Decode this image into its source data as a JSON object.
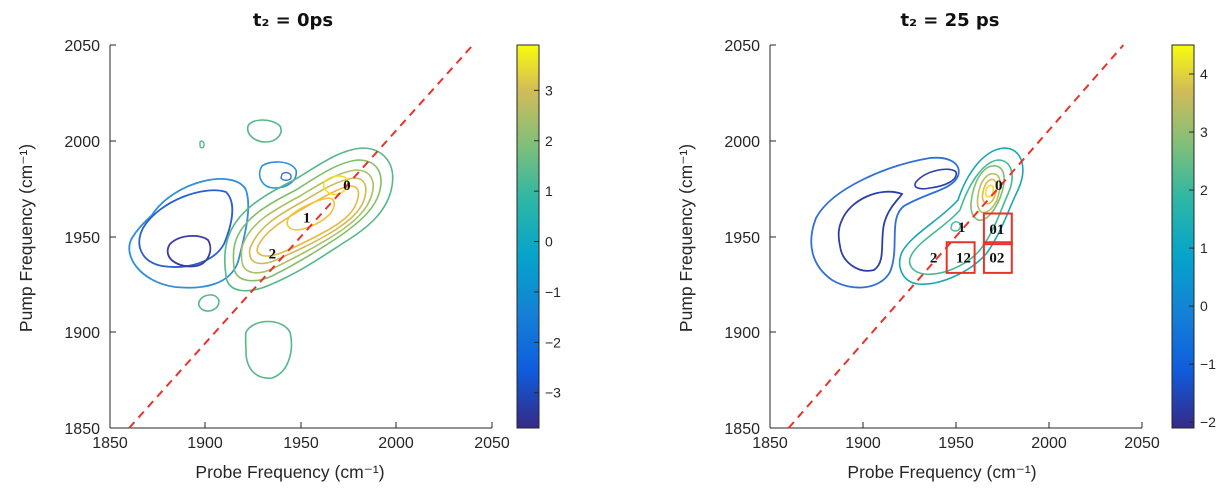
{
  "chart_data": [
    {
      "type": "contour",
      "title": "t₂ = 0ps",
      "xlabel": "Probe Frequency (cm⁻¹)",
      "ylabel": "Pump Frequency (cm⁻¹)",
      "xlim": [
        1850,
        2050
      ],
      "ylim": [
        1850,
        2050
      ],
      "xticks": [
        "1850",
        "1900",
        "1950",
        "2000",
        "2050"
      ],
      "yticks": [
        "1850",
        "1900",
        "1950",
        "2000",
        "2050"
      ],
      "diagonal": {
        "color": "#e8332a",
        "style": "dashed",
        "from": [
          1860,
          1850
        ],
        "to": [
          2040,
          2050
        ]
      },
      "colorbar": {
        "range": [
          -3.7,
          3.9
        ],
        "ticks": [
          "-3",
          "-2",
          "-1",
          "0",
          "1",
          "2",
          "3"
        ]
      },
      "peak_labels": [
        {
          "text": "0",
          "x": 1974,
          "y": 1977
        },
        {
          "text": "1",
          "x": 1953,
          "y": 1960
        },
        {
          "text": "2",
          "x": 1935,
          "y": 1941
        }
      ],
      "features": [
        {
          "kind": "negative",
          "center": [
            1898,
            1943
          ],
          "levels": 3
        },
        {
          "kind": "positive",
          "center": [
            1958,
            1955
          ],
          "levels": 7
        },
        {
          "kind": "positive-weak",
          "center": [
            1947,
            2003
          ]
        },
        {
          "kind": "positive-weak",
          "center": [
            1955,
            1890
          ]
        },
        {
          "kind": "negative-weak",
          "center": [
            1946,
            1983
          ]
        }
      ],
      "boxes": []
    },
    {
      "type": "contour",
      "title": "t₂ = 25 ps",
      "xlabel": "Probe Frequency (cm⁻¹)",
      "ylabel": "Pump Frequency (cm⁻¹)",
      "xlim": [
        1850,
        2050
      ],
      "ylim": [
        1850,
        2050
      ],
      "xticks": [
        "1850",
        "1900",
        "1950",
        "2000",
        "2050"
      ],
      "yticks": [
        "1850",
        "1900",
        "1950",
        "2000",
        "2050"
      ],
      "diagonal": {
        "color": "#e8332a",
        "style": "dashed",
        "from": [
          1860,
          1850
        ],
        "to": [
          2040,
          2050
        ]
      },
      "colorbar": {
        "range": [
          -2.1,
          4.5
        ],
        "ticks": [
          "-2",
          "-1",
          "0",
          "1",
          "2",
          "3",
          "4"
        ]
      },
      "peak_labels": [
        {
          "text": "0",
          "x": 1973,
          "y": 1977
        },
        {
          "text": "1",
          "x": 1953,
          "y": 1955
        },
        {
          "text": "2",
          "x": 1938,
          "y": 1939
        },
        {
          "text": "01",
          "x": 1972,
          "y": 1954
        },
        {
          "text": "12",
          "x": 1954,
          "y": 1939
        },
        {
          "text": "02",
          "x": 1972,
          "y": 1939
        }
      ],
      "features": [
        {
          "kind": "negative",
          "center": [
            1918,
            1955
          ],
          "levels": 2
        },
        {
          "kind": "positive",
          "center": [
            1970,
            1965
          ],
          "levels": 6
        }
      ],
      "boxes": [
        {
          "label": "01",
          "x0": 1965,
          "x1": 1980,
          "y0": 1946,
          "y1": 1962
        },
        {
          "label": "12",
          "x0": 1945,
          "x1": 1960,
          "y0": 1931,
          "y1": 1947
        },
        {
          "label": "02",
          "x0": 1965,
          "x1": 1980,
          "y0": 1931,
          "y1": 1947
        }
      ]
    }
  ]
}
